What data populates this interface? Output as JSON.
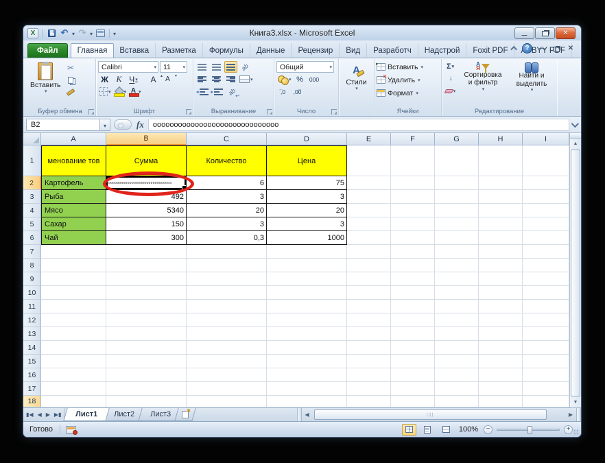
{
  "window": {
    "title": "Книга3.xlsx - Microsoft Excel"
  },
  "tabs": {
    "file": "Файл",
    "active": "Главная",
    "items": [
      "Главная",
      "Вставка",
      "Разметка",
      "Формулы",
      "Данные",
      "Рецензир",
      "Вид",
      "Разработч",
      "Надстрой",
      "Foxit PDF",
      "ABBYY PDF"
    ]
  },
  "ribbon": {
    "clipboard": {
      "paste": "Вставить",
      "label": "Буфер обмена"
    },
    "font": {
      "name": "Calibri",
      "size": "11",
      "bold": "Ж",
      "italic": "К",
      "underline": "Ч",
      "letter": "А",
      "label": "Шрифт"
    },
    "alignment": {
      "label": "Выравнивание"
    },
    "number": {
      "format": "Общий",
      "percent": "%",
      "thousands": "000",
      "dec_inc": ",0",
      "dec_dec": ",00",
      "label": "Число"
    },
    "styles": {
      "button": "Стили"
    },
    "cells": {
      "insert": "Вставить",
      "delete": "Удалить",
      "format": "Формат",
      "label": "Ячейки"
    },
    "editing": {
      "sum": "Σ",
      "sort": "Сортировка и фильтр",
      "find": "Найти и выделить",
      "label": "Редактирование"
    }
  },
  "formula_bar": {
    "name_box": "B2",
    "fx": "fx",
    "value": "оооооооооооооооооооооооооооооо"
  },
  "grid": {
    "columns": [
      "A",
      "B",
      "C",
      "D",
      "E",
      "F",
      "G",
      "H",
      "I"
    ],
    "selected_cell": "B2",
    "selected_column": "B",
    "selected_row": 2,
    "last_row": 18,
    "header_row": {
      "A": "менование тов",
      "B": "Сумма",
      "C": "Количество",
      "D": "Цена"
    },
    "data_rows": [
      {
        "A": "Картофель",
        "B": "оооооооооооооооооооооооооооооо",
        "C": "6",
        "D": "75"
      },
      {
        "A": "Рыба",
        "B": "492",
        "C": "3",
        "D": "3"
      },
      {
        "A": "Мясо",
        "B": "5340",
        "C": "20",
        "D": "20"
      },
      {
        "A": "Сахар",
        "B": "150",
        "C": "3",
        "D": "3"
      },
      {
        "A": "Чай",
        "B": "300",
        "C": "0,3",
        "D": "1000"
      }
    ]
  },
  "sheets": {
    "active": "Лист1",
    "items": [
      "Лист1",
      "Лист2",
      "Лист3"
    ]
  },
  "status_bar": {
    "ready": "Готово",
    "zoom": "100%"
  },
  "colors": {
    "header_fill": "#ffff00",
    "product_fill": "#92d050",
    "annotation": "#e0241b",
    "file_tab_green": "#2c8a2c",
    "selection_border": "#000000"
  }
}
